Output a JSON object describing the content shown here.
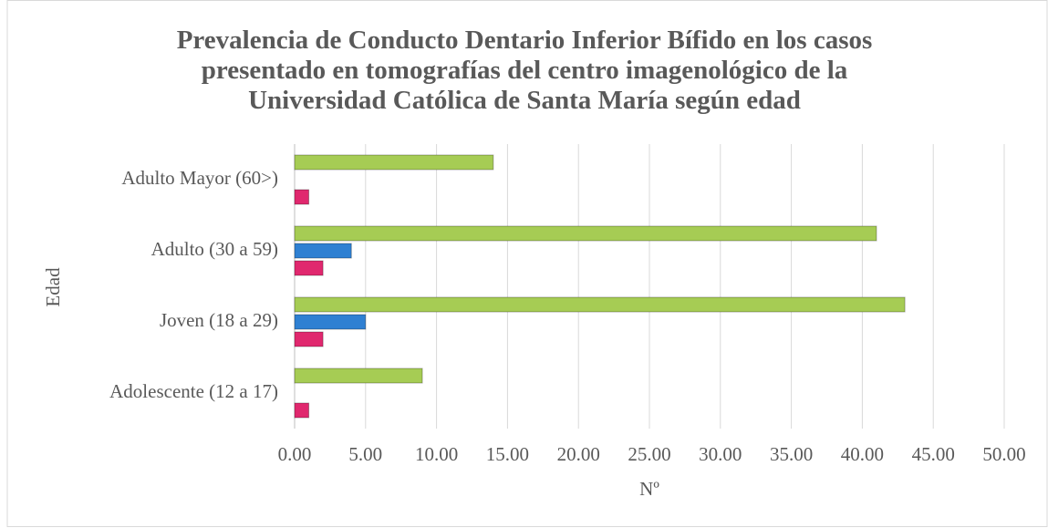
{
  "chart_data": {
    "type": "hbar",
    "title": "Prevalencia de Conducto Dentario Inferior Bífido en los casos presentado en tomografías del centro imagenológico de la Universidad Católica de Santa María según edad",
    "xlabel": "Nº",
    "ylabel": "Edad",
    "categories": [
      "Adolescente (12 a 17)",
      "Joven (18 a 29)",
      "Adulto (30 a 59)",
      "Adulto Mayor (60>)"
    ],
    "series": [
      {
        "color": "#e0286e",
        "values": [
          1,
          2,
          2,
          1
        ]
      },
      {
        "color": "#2f80d2",
        "values": [
          0,
          5,
          4,
          0
        ]
      },
      {
        "color": "#a6cc54",
        "values": [
          9,
          43,
          41,
          14
        ]
      }
    ],
    "xlim": [
      0,
      50
    ],
    "xticks": [
      {
        "value": 0,
        "label": "0.00"
      },
      {
        "value": 5,
        "label": "5.00"
      },
      {
        "value": 10,
        "label": "10.00"
      },
      {
        "value": 15,
        "label": "15.00"
      },
      {
        "value": 20,
        "label": "20.00"
      },
      {
        "value": 25,
        "label": "25.00"
      },
      {
        "value": 30,
        "label": "30.00"
      },
      {
        "value": 35,
        "label": "35.00"
      },
      {
        "value": 40,
        "label": "40.00"
      },
      {
        "value": 45,
        "label": "45.00"
      },
      {
        "value": 50,
        "label": "50.00"
      }
    ],
    "grid": true
  }
}
